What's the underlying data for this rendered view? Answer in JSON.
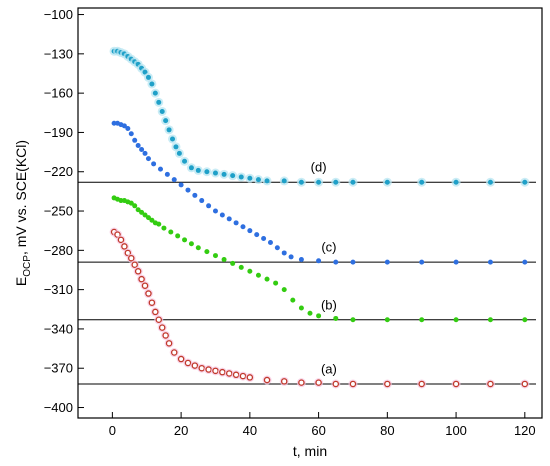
{
  "chart_data": {
    "type": "scatter",
    "title": "",
    "xlabel": "t, min",
    "ylabel_main": "E",
    "ylabel_sub": "OCP",
    "ylabel_rest": ", mV vs. SCE(KCl)",
    "xlim": [
      -10,
      125
    ],
    "ylim": [
      -408,
      -95
    ],
    "x_ticks": [
      0,
      20,
      40,
      60,
      80,
      100,
      120
    ],
    "y_ticks": [
      -100,
      -130,
      -160,
      -190,
      -220,
      -250,
      -280,
      -310,
      -340,
      -370,
      -400
    ],
    "grid": false,
    "legend": "none",
    "series": [
      {
        "label": "(a)",
        "color": "#c0392b",
        "fill": "#ffffff",
        "halo": "#f7c6e0",
        "marker": "open-circle",
        "reference": -382,
        "label_pos": [
          63,
          -374
        ],
        "x": [
          0.5,
          1.5,
          2.5,
          3.5,
          4.5,
          5.5,
          6.5,
          7.5,
          8.5,
          9.5,
          10.5,
          11.5,
          12.5,
          13.5,
          14.5,
          15.5,
          16.5,
          18,
          20,
          22,
          24,
          26,
          28,
          30,
          32,
          34,
          36,
          38,
          40,
          45,
          50,
          55,
          60,
          65,
          70,
          80,
          90,
          100,
          110,
          120
        ],
        "y": [
          -266,
          -268,
          -272,
          -277,
          -282,
          -286,
          -291,
          -296,
          -302,
          -307,
          -313,
          -320,
          -327,
          -333,
          -339,
          -345,
          -351,
          -358,
          -363,
          -366,
          -368,
          -370,
          -371,
          -372,
          -373,
          -374,
          -375,
          -376,
          -377,
          -379,
          -380,
          -381,
          -381,
          -382,
          -382,
          -382,
          -382,
          -382,
          -382,
          -382
        ]
      },
      {
        "label": "(b)",
        "color": "#33cc11",
        "marker": "dot",
        "reference": -333,
        "label_pos": [
          63,
          -325
        ],
        "x": [
          0.5,
          1.5,
          2.5,
          3.5,
          4.5,
          5.5,
          6.5,
          7.5,
          8.5,
          9.5,
          10.5,
          11.5,
          12.5,
          13.5,
          15,
          17,
          19,
          21,
          23,
          25,
          27.5,
          30,
          32.5,
          35,
          37.5,
          40,
          42.5,
          45,
          47.5,
          50,
          52.5,
          55,
          57.5,
          60,
          65,
          70,
          80,
          90,
          100,
          110,
          120
        ],
        "y": [
          -240,
          -241,
          -242,
          -242,
          -243,
          -244,
          -246,
          -249,
          -251,
          -253,
          -255,
          -257,
          -259,
          -260,
          -263,
          -266,
          -269,
          -272,
          -275,
          -278,
          -281,
          -284,
          -287,
          -290,
          -293,
          -296,
          -299,
          -302,
          -305,
          -310,
          -318,
          -324,
          -328,
          -330,
          -332,
          -333,
          -333,
          -333,
          -333,
          -333,
          -333
        ]
      },
      {
        "label": "(c)",
        "color": "#2e6fe0",
        "marker": "dot",
        "reference": -289,
        "label_pos": [
          63,
          -281
        ],
        "x": [
          0.5,
          1.5,
          2.5,
          3.5,
          4.5,
          5.5,
          6.5,
          7.5,
          8.5,
          9.5,
          10.5,
          12,
          14,
          16,
          18,
          20,
          22,
          24,
          26,
          28,
          30,
          32,
          34,
          36,
          38,
          40,
          42,
          44,
          46,
          48,
          50,
          52,
          55,
          60,
          65,
          70,
          80,
          90,
          100,
          110,
          120
        ],
        "y": [
          -183,
          -183,
          -184,
          -185,
          -187,
          -191,
          -196,
          -200,
          -203,
          -206,
          -210,
          -214,
          -218,
          -222,
          -226,
          -230,
          -234,
          -238,
          -242,
          -246,
          -250,
          -253,
          -256,
          -259,
          -262,
          -265,
          -268,
          -271,
          -274,
          -278,
          -282,
          -285,
          -287,
          -288,
          -289,
          -289,
          -289,
          -289,
          -289,
          -289,
          -289
        ]
      },
      {
        "label": "(d)",
        "color": "#1fa0c8",
        "halo": "#b8e6f2",
        "marker": "dot",
        "reference": -228,
        "label_pos": [
          60,
          -220
        ],
        "x": [
          0.5,
          1.5,
          2.5,
          3.5,
          4.5,
          5.5,
          6.5,
          7.5,
          8.5,
          9.5,
          10.5,
          11.5,
          12.5,
          13.5,
          14.5,
          15.5,
          16.5,
          17.5,
          18.5,
          19.5,
          21,
          23,
          25,
          27.5,
          30,
          32.5,
          35,
          37.5,
          40,
          42.5,
          45,
          50,
          55,
          60,
          65,
          70,
          80,
          90,
          100,
          110,
          120
        ],
        "y": [
          -128,
          -128,
          -129,
          -130,
          -132,
          -134,
          -136,
          -138,
          -141,
          -144,
          -148,
          -153,
          -160,
          -167,
          -174,
          -181,
          -188,
          -195,
          -201,
          -206,
          -212,
          -217,
          -219,
          -220,
          -221,
          -222,
          -223,
          -224,
          -225,
          -226,
          -227,
          -227,
          -228,
          -228,
          -228,
          -228,
          -228,
          -228,
          -228,
          -228,
          -228
        ]
      }
    ]
  }
}
